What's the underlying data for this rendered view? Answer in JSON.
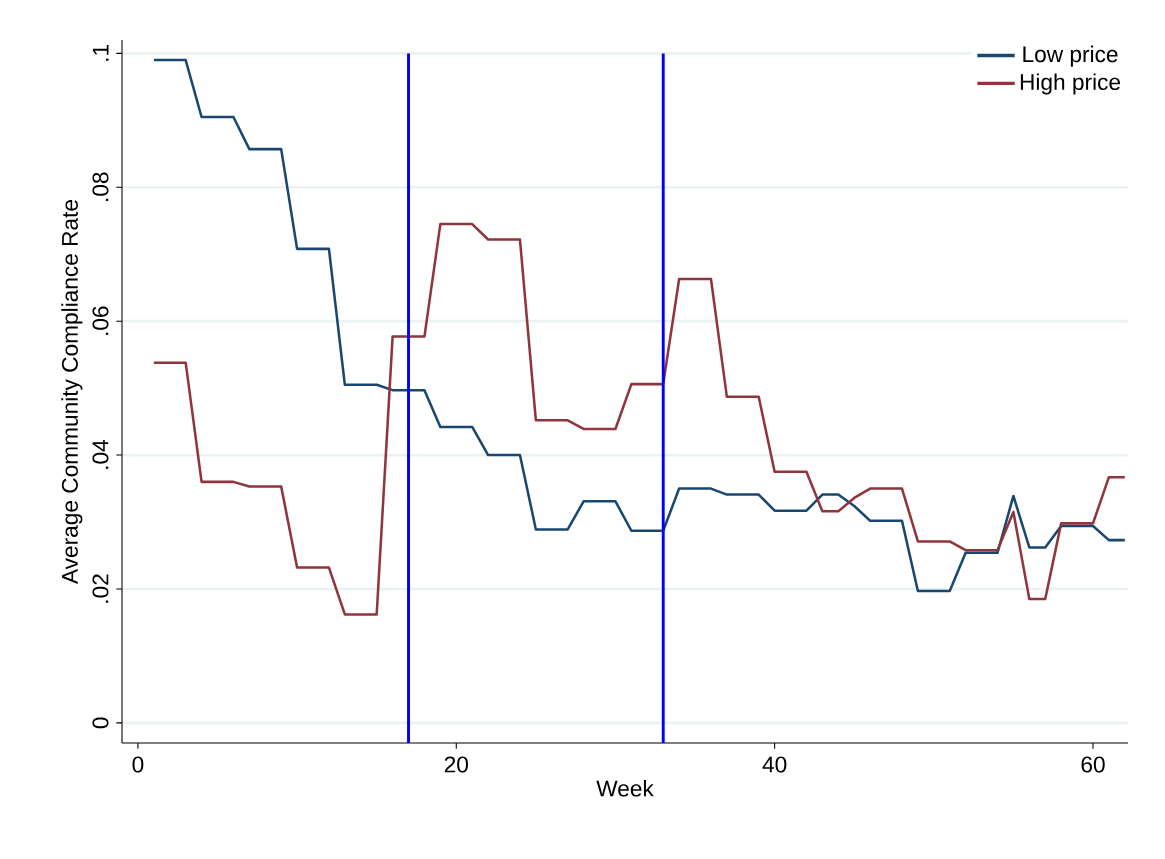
{
  "chart_data": {
    "type": "line",
    "xlabel": "Week",
    "ylabel": "Average Community Compliance Rate",
    "x": [
      1,
      2,
      3,
      4,
      5,
      6,
      7,
      8,
      9,
      10,
      11,
      12,
      13,
      14,
      15,
      16,
      17,
      18,
      19,
      20,
      21,
      22,
      23,
      24,
      25,
      26,
      27,
      28,
      29,
      30,
      31,
      32,
      33,
      34,
      35,
      36,
      37,
      38,
      39,
      40,
      41,
      42,
      43,
      44,
      45,
      46,
      47,
      48,
      49,
      50,
      51,
      52,
      53,
      54,
      55,
      56,
      57,
      58,
      59,
      60,
      61,
      62
    ],
    "series": [
      {
        "name": "Low price",
        "color": "#1a476f",
        "values": [
          0.099,
          0.099,
          0.099,
          0.0905,
          0.0905,
          0.0905,
          0.0857,
          0.0857,
          0.0857,
          0.0708,
          0.0708,
          0.0708,
          0.0505,
          0.0505,
          0.0505,
          0.0497,
          0.0497,
          0.0497,
          0.0442,
          0.0442,
          0.0442,
          0.04,
          0.04,
          0.04,
          0.0289,
          0.0289,
          0.0289,
          0.0331,
          0.0331,
          0.0331,
          0.0287,
          0.0287,
          0.0287,
          0.035,
          0.035,
          0.035,
          0.0341,
          0.0341,
          0.0341,
          0.0317,
          0.0317,
          0.0317,
          0.0341,
          0.0341,
          0.0324,
          0.0302,
          0.0302,
          0.0302,
          0.0197,
          0.0197,
          0.0197,
          0.0254,
          0.0254,
          0.0254,
          0.0339,
          0.0262,
          0.0262,
          0.0294,
          0.0294,
          0.0294,
          0.0273,
          0.0273
        ]
      },
      {
        "name": "High price",
        "color": "#90353b",
        "values": [
          0.0538,
          0.0538,
          0.0538,
          0.036,
          0.036,
          0.036,
          0.0353,
          0.0353,
          0.0353,
          0.0232,
          0.0232,
          0.0232,
          0.0162,
          0.0162,
          0.0162,
          0.0577,
          0.0577,
          0.0577,
          0.0745,
          0.0745,
          0.0745,
          0.0722,
          0.0722,
          0.0722,
          0.0452,
          0.0452,
          0.0452,
          0.0439,
          0.0439,
          0.0439,
          0.0506,
          0.0506,
          0.0506,
          0.0663,
          0.0663,
          0.0663,
          0.0487,
          0.0487,
          0.0487,
          0.0375,
          0.0375,
          0.0375,
          0.0316,
          0.0316,
          0.0336,
          0.035,
          0.035,
          0.035,
          0.0271,
          0.0271,
          0.0271,
          0.0258,
          0.0258,
          0.0258,
          0.0315,
          0.0185,
          0.0185,
          0.0298,
          0.0298,
          0.0298,
          0.0367,
          0.0367
        ]
      }
    ],
    "xlim": [
      -1,
      62.2
    ],
    "ylim": [
      -0.003,
      0.102
    ],
    "xticks": [
      0,
      20,
      40,
      60
    ],
    "yticks": [
      0,
      {
        "value": 0.02,
        "label": ".02"
      },
      {
        "value": 0.04,
        "label": ".04"
      },
      {
        "value": 0.06,
        "label": ".06"
      },
      {
        "value": 0.08,
        "label": ".08"
      },
      {
        "value": 0.1,
        "label": ".1"
      }
    ],
    "ref_lines": [
      {
        "axis": "x",
        "value": 17,
        "color": "#0000ff"
      },
      {
        "axis": "x",
        "value": 33,
        "color": "#0000ff"
      }
    ],
    "grid": "y",
    "legend": "top right",
    "line_style": "solid",
    "marker": "none"
  }
}
